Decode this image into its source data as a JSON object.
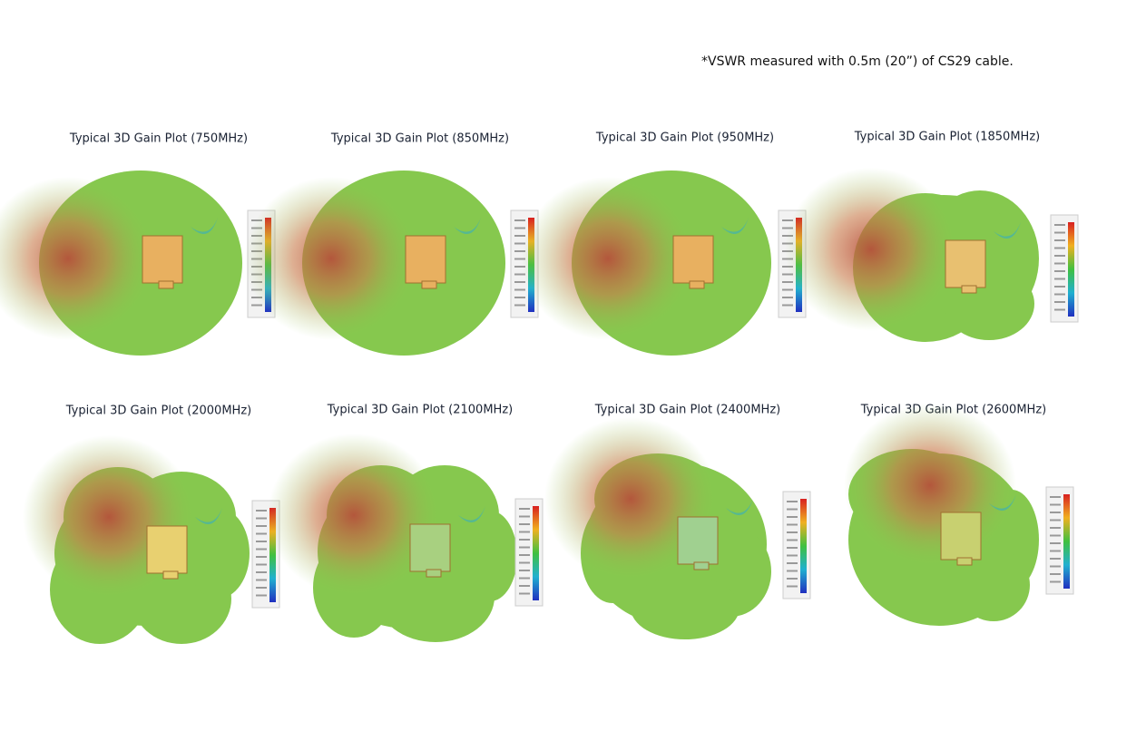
{
  "note": "*VSWR measured with 0.5m (20”) of CS29 cable.",
  "plots": [
    {
      "title": "Typical 3D Gain Plot (750MHz)"
    },
    {
      "title": "Typical 3D Gain Plot (850MHz)"
    },
    {
      "title": "Typical 3D Gain Plot (950MHz)"
    },
    {
      "title": "Typical 3D Gain Plot (1850MHz)"
    },
    {
      "title": "Typical 3D Gain Plot (2000MHz)"
    },
    {
      "title": "Typical 3D Gain Plot (2100MHz)"
    },
    {
      "title": "Typical 3D Gain Plot (2400MHz)"
    },
    {
      "title": "Typical 3D Gain Plot (2600MHz)"
    }
  ]
}
